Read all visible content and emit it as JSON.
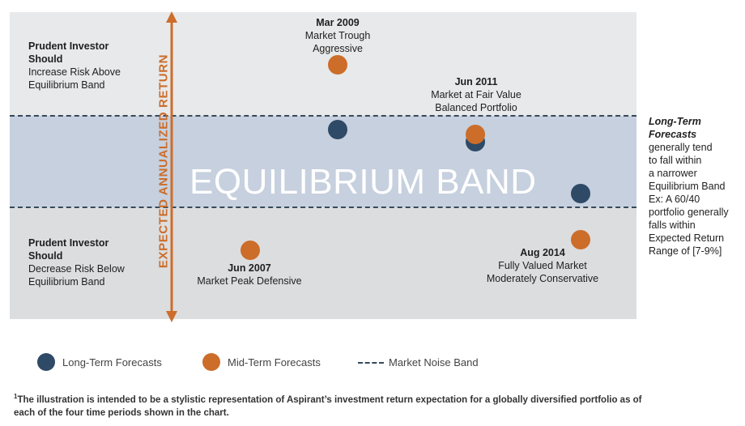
{
  "band": {
    "label": "EQUILIBRIUM BAND"
  },
  "axis": {
    "label": "EXPECTED ANNUALIZED RETURN"
  },
  "top_left_note": {
    "title_line1": "Prudent Investor",
    "title_line2": "Should",
    "body_line1": "Increase Risk Above",
    "body_line2": "Equilibrium Band"
  },
  "bottom_left_note": {
    "title_line1": "Prudent Investor",
    "title_line2": "Should",
    "body_line1": "Decrease Risk Below",
    "body_line2": "Equilibrium Band"
  },
  "periods": [
    {
      "date": "Jun 2007",
      "line1": "Market Peak Defensive",
      "line2": ""
    },
    {
      "date": "Mar 2009",
      "line1": "Market Trough",
      "line2": "Aggressive"
    },
    {
      "date": "Jun 2011",
      "line1": "Market at Fair Value",
      "line2": "Balanced Portfolio"
    },
    {
      "date": "Aug 2014",
      "line1": "Fully Valued Market",
      "line2": "Moderately Conservative"
    }
  ],
  "side_note": {
    "title_line1": "Long-Term",
    "title_line2": "Forecasts",
    "lines": [
      "generally tend",
      "to fall within",
      "a narrower",
      "Equilibrium Band",
      "Ex: A 60/40",
      "portfolio generally",
      "falls within",
      "Expected Return",
      "Range of [7-9%]"
    ]
  },
  "legend": {
    "long_term": "Long-Term Forecasts",
    "mid_term": "Mid-Term Forecasts",
    "noise_band": "Market Noise Band"
  },
  "footnote": {
    "marker": "1",
    "text": "The illustration is intended to be a stylistic representation of Aspirant’s investment return expectation for a globally diversified portfolio as of each of the four time periods shown in the chart."
  },
  "colors": {
    "long_term": "#2e4a66",
    "mid_term": "#cc6d2a",
    "band": "#c6d0de",
    "noise_line": "#36495a"
  }
}
